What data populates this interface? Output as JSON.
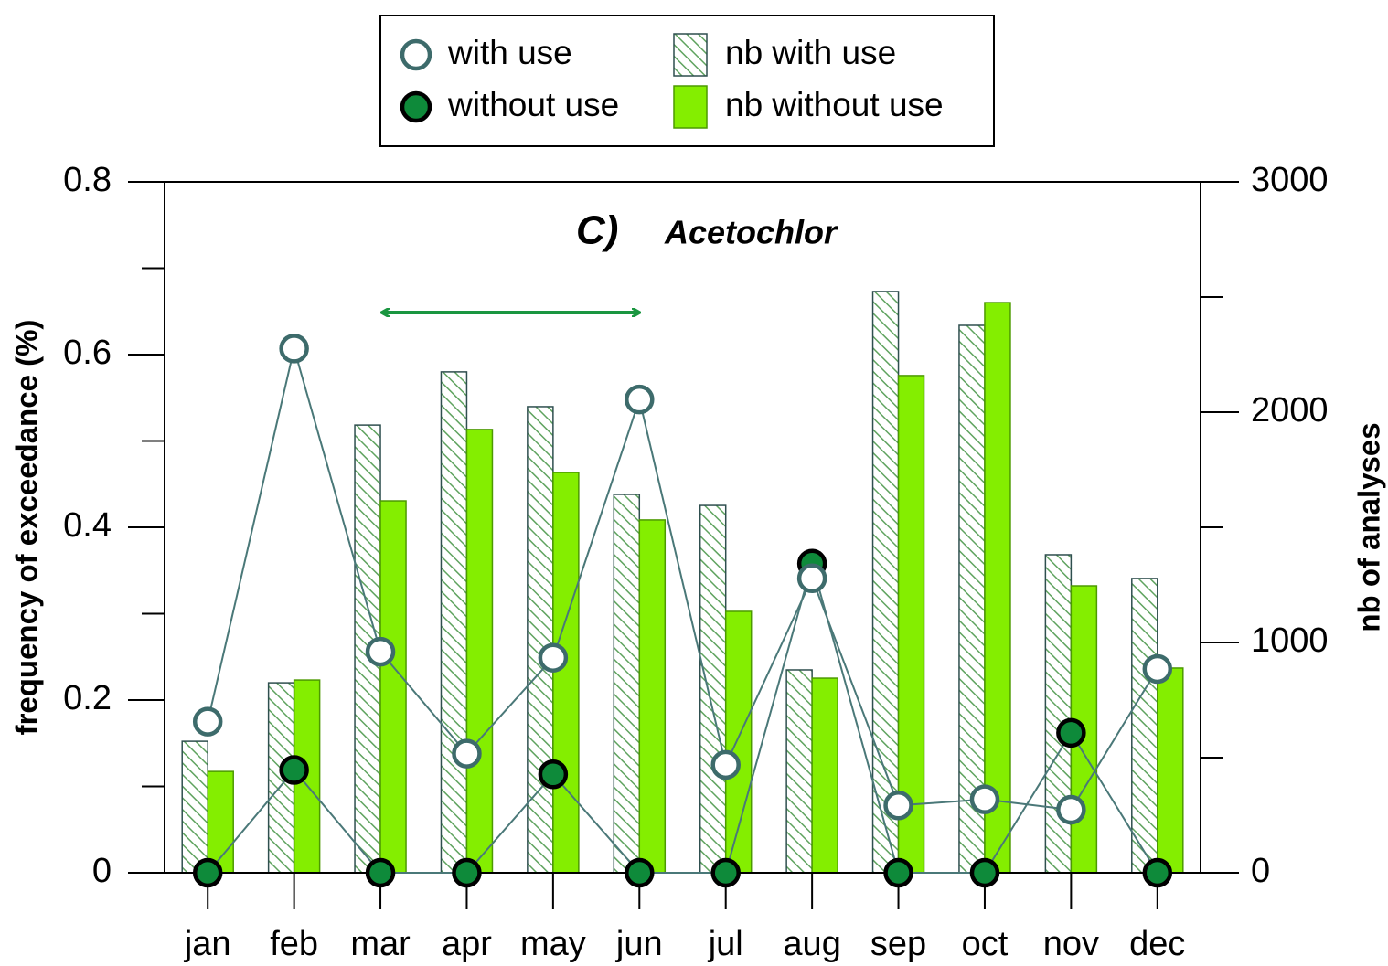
{
  "chart_data": {
    "type": "bar",
    "panel_label": "C)",
    "title": "Acetochlor",
    "y_label": "frequency of exceedance (%)",
    "y2_label": "nb of analyses",
    "categories": [
      "jan",
      "feb",
      "mar",
      "apr",
      "may",
      "jun",
      "jul",
      "aug",
      "sep",
      "oct",
      "nov",
      "dec"
    ],
    "ylim": [
      0,
      0.8
    ],
    "yticks": [
      0,
      0.2,
      0.4,
      0.6,
      0.8
    ],
    "yminorticks": [
      0.1,
      0.3,
      0.5,
      0.7
    ],
    "y2lim": [
      0,
      3000
    ],
    "y2ticks": [
      0,
      1000,
      2000,
      3000
    ],
    "y2minorticks": [
      500,
      1500,
      2500
    ],
    "series": [
      {
        "name": "nb with use",
        "type": "bar",
        "axis": "y2",
        "color": "#5fa35f",
        "hatch": true,
        "values": [
          571,
          825,
          1944,
          2175,
          2024,
          1643,
          1595,
          881,
          2524,
          2377,
          1381,
          1278
        ]
      },
      {
        "name": "nb without use",
        "type": "bar",
        "axis": "y2",
        "color": "#84ee00",
        "hatch": false,
        "values": [
          440,
          837,
          1615,
          1925,
          1738,
          1532,
          1135,
          845,
          2159,
          2476,
          1246,
          889
        ]
      },
      {
        "name": "with use",
        "type": "line",
        "color": "#ffffff",
        "values": [
          0.175,
          0.607,
          0.256,
          0.138,
          0.249,
          0.548,
          0.125,
          0.341,
          0.078,
          0.085,
          0.073,
          0.236
        ]
      },
      {
        "name": "without use",
        "type": "line",
        "color": "#0e8a3a",
        "values": [
          0,
          0.119,
          0,
          0,
          0.114,
          0,
          0,
          0.358,
          0,
          0,
          0.162,
          0
        ]
      }
    ]
  }
}
